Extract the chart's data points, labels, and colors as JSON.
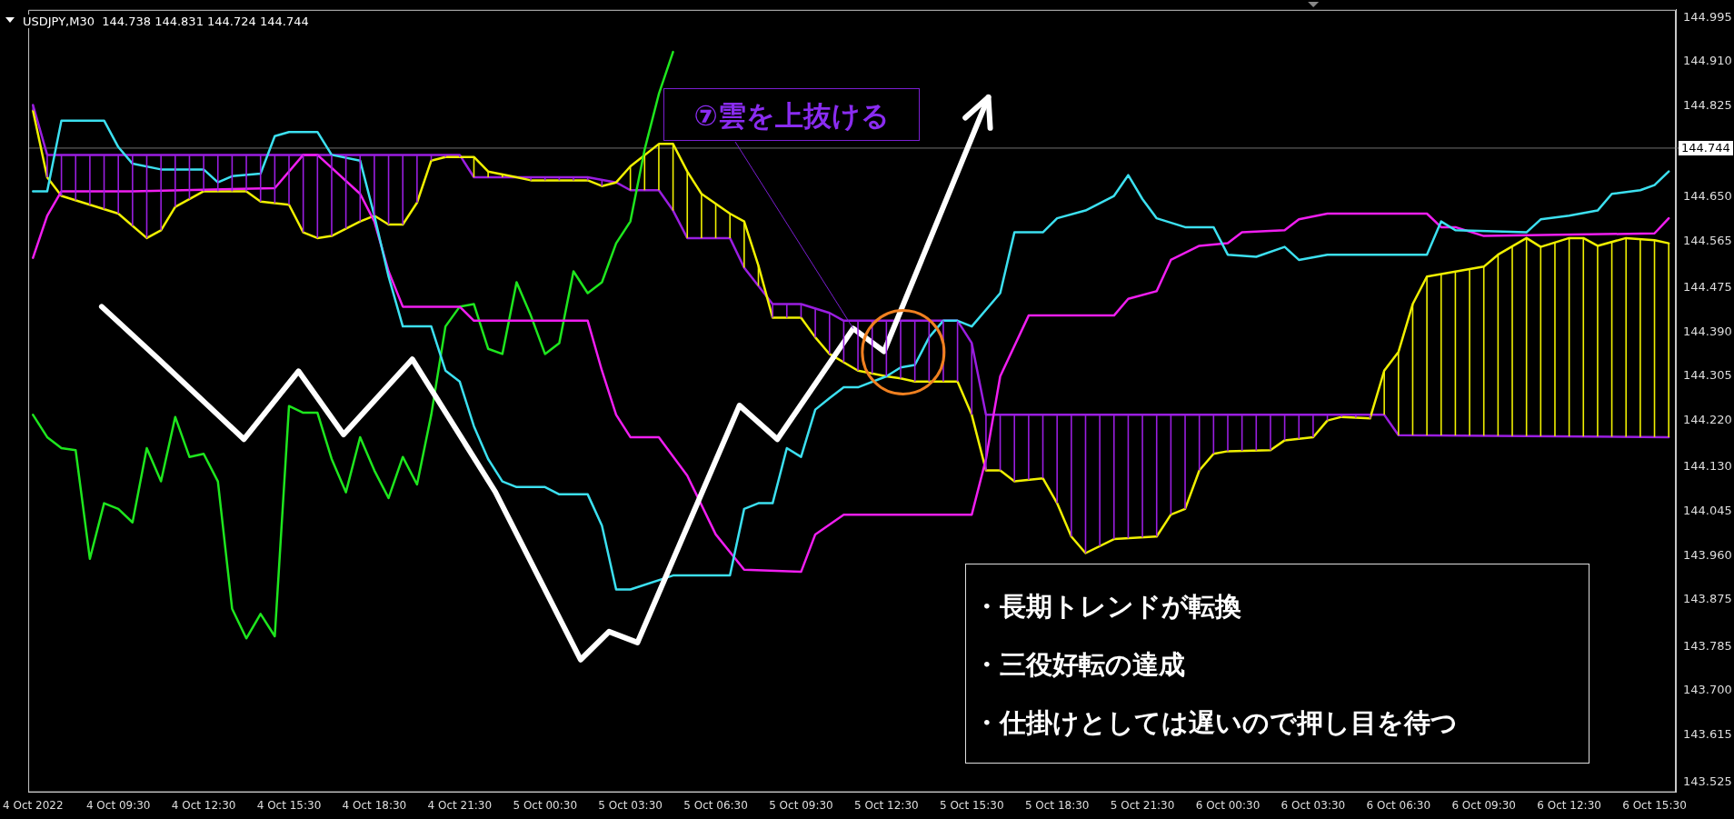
{
  "chart_data": {
    "type": "line",
    "title": "USDJPY,M30  144.738 144.831 144.724 144.744",
    "grid": false,
    "legend": false,
    "marker": "none",
    "xlim": [
      "2022-10-04T06:20",
      "2022-10-06T16:15"
    ],
    "xticks": [
      {
        "value": "2022-10-04T06:30",
        "label": "4 Oct 2022"
      },
      {
        "value": "2022-10-04T09:30",
        "label": "4 Oct 09:30"
      },
      {
        "value": "2022-10-04T12:30",
        "label": "4 Oct 12:30"
      },
      {
        "value": "2022-10-04T15:30",
        "label": "4 Oct 15:30"
      },
      {
        "value": "2022-10-04T18:30",
        "label": "4 Oct 18:30"
      },
      {
        "value": "2022-10-04T21:30",
        "label": "4 Oct 21:30"
      },
      {
        "value": "2022-10-05T00:30",
        "label": "5 Oct 00:30"
      },
      {
        "value": "2022-10-05T03:30",
        "label": "5 Oct 03:30"
      },
      {
        "value": "2022-10-05T06:30",
        "label": "5 Oct 06:30"
      },
      {
        "value": "2022-10-05T09:30",
        "label": "5 Oct 09:30"
      },
      {
        "value": "2022-10-05T12:30",
        "label": "5 Oct 12:30"
      },
      {
        "value": "2022-10-05T15:30",
        "label": "5 Oct 15:30"
      },
      {
        "value": "2022-10-05T18:30",
        "label": "5 Oct 18:30"
      },
      {
        "value": "2022-10-05T21:30",
        "label": "5 Oct 21:30"
      },
      {
        "value": "2022-10-06T00:30",
        "label": "6 Oct 00:30"
      },
      {
        "value": "2022-10-06T03:30",
        "label": "6 Oct 03:30"
      },
      {
        "value": "2022-10-06T06:30",
        "label": "6 Oct 06:30"
      },
      {
        "value": "2022-10-06T09:30",
        "label": "6 Oct 09:30"
      },
      {
        "value": "2022-10-06T12:30",
        "label": "6 Oct 12:30"
      },
      {
        "value": "2022-10-06T15:30",
        "label": "6 Oct 15:30"
      }
    ],
    "ylim": [
      143.505,
      145.01
    ],
    "yticks": [
      {
        "value": 143.525,
        "label": "143.525"
      },
      {
        "value": 143.615,
        "label": "143.615"
      },
      {
        "value": 143.7,
        "label": "143.700"
      },
      {
        "value": 143.785,
        "label": "143.785"
      },
      {
        "value": 143.875,
        "label": "143.875"
      },
      {
        "value": 143.96,
        "label": "143.960"
      },
      {
        "value": 144.045,
        "label": "144.045"
      },
      {
        "value": 144.13,
        "label": "144.130"
      },
      {
        "value": 144.22,
        "label": "144.220"
      },
      {
        "value": 144.305,
        "label": "144.305"
      },
      {
        "value": 144.39,
        "label": "144.390"
      },
      {
        "value": 144.475,
        "label": "144.475"
      },
      {
        "value": 144.565,
        "label": "144.565"
      },
      {
        "value": 144.65,
        "label": "144.650"
      },
      {
        "value": 144.825,
        "label": "144.825"
      },
      {
        "value": 144.91,
        "label": "144.910"
      },
      {
        "value": 144.995,
        "label": "144.995"
      }
    ],
    "ref_lines": [
      {
        "axis": "y",
        "value": 144.744,
        "label": "144.744",
        "color": "#707070"
      }
    ],
    "annotations": [
      {
        "text": "⑦雲を上抜ける",
        "x": "2022-10-05T11:20",
        "y": 144.397
      },
      "・長期トレンドが転換",
      "・三役好転の達成",
      "・仕掛けとしては遅いので押し目を待つ"
    ],
    "series": [
      {
        "color": "#ffffff",
        "x": [
          "2022-10-04T08:55",
          "2022-10-04T10:55",
          "2022-10-04T13:55",
          "2022-10-04T15:50",
          "2022-10-04T17:25",
          "2022-10-04T19:50",
          "2022-10-04T22:45",
          "2022-10-05T01:45",
          "2022-10-05T02:45",
          "2022-10-05T03:45",
          "2022-10-05T07:20",
          "2022-10-05T08:40",
          "2022-10-05T11:20",
          "2022-10-05T12:25",
          "2022-10-05T16:05"
        ],
        "values": [
          144.439,
          144.338,
          144.184,
          144.315,
          144.193,
          144.338,
          144.083,
          143.76,
          143.814,
          143.793,
          144.249,
          144.184,
          144.397,
          144.353,
          144.842
        ]
      },
      {
        "color": "#3ce0f0",
        "x": [
          "2022-10-04T06:30",
          "2022-10-04T07:00",
          "2022-10-04T07:30",
          "2022-10-04T09:00",
          "2022-10-04T09:30",
          "2022-10-04T10:00",
          "2022-10-04T11:00",
          "2022-10-04T12:30",
          "2022-10-04T13:00",
          "2022-10-04T13:30",
          "2022-10-04T14:30",
          "2022-10-04T15:00",
          "2022-10-04T15:30",
          "2022-10-04T16:30",
          "2022-10-04T17:00",
          "2022-10-04T18:00",
          "2022-10-04T18:30",
          "2022-10-04T19:00",
          "2022-10-04T19:30",
          "2022-10-04T20:30",
          "2022-10-04T21:00",
          "2022-10-04T21:30",
          "2022-10-04T22:00",
          "2022-10-04T22:30",
          "2022-10-04T23:00",
          "2022-10-04T23:30",
          "2022-10-05T00:30",
          "2022-10-05T01:00",
          "2022-10-05T02:00",
          "2022-10-05T02:30",
          "2022-10-05T03:00",
          "2022-10-05T03:30",
          "2022-10-05T05:00",
          "2022-10-05T07:00",
          "2022-10-05T07:30",
          "2022-10-05T08:00",
          "2022-10-05T08:30",
          "2022-10-05T09:00",
          "2022-10-05T09:30",
          "2022-10-05T10:00",
          "2022-10-05T10:30",
          "2022-10-05T11:00",
          "2022-10-05T11:30",
          "2022-10-05T12:30",
          "2022-10-05T13:00",
          "2022-10-05T13:30",
          "2022-10-05T14:00",
          "2022-10-05T14:30",
          "2022-10-05T15:00",
          "2022-10-05T15:30",
          "2022-10-05T16:30",
          "2022-10-05T17:00",
          "2022-10-05T18:00",
          "2022-10-05T18:30",
          "2022-10-05T19:30",
          "2022-10-05T20:30",
          "2022-10-05T21:00",
          "2022-10-05T21:30",
          "2022-10-05T22:00",
          "2022-10-05T23:00",
          "2022-10-06T00:00",
          "2022-10-06T00:30",
          "2022-10-06T01:30",
          "2022-10-06T02:30",
          "2022-10-06T03:00",
          "2022-10-06T04:00",
          "2022-10-06T07:30",
          "2022-10-06T08:00",
          "2022-10-06T08:30",
          "2022-10-06T11:00",
          "2022-10-06T11:30",
          "2022-10-06T12:30",
          "2022-10-06T13:30",
          "2022-10-06T14:00",
          "2022-10-06T15:00",
          "2022-10-06T15:30",
          "2022-10-06T16:00"
        ],
        "values": [
          144.661,
          144.661,
          144.797,
          144.797,
          144.746,
          144.714,
          144.703,
          144.703,
          144.678,
          144.69,
          144.695,
          144.767,
          144.775,
          144.775,
          144.731,
          144.72,
          144.614,
          144.497,
          144.401,
          144.401,
          144.316,
          144.295,
          144.209,
          144.146,
          144.103,
          144.092,
          144.092,
          144.078,
          144.078,
          144.018,
          143.895,
          143.895,
          143.922,
          143.922,
          144.05,
          144.061,
          144.061,
          144.167,
          144.15,
          144.241,
          144.263,
          144.284,
          144.284,
          144.305,
          144.322,
          144.327,
          144.38,
          144.412,
          144.412,
          144.401,
          144.465,
          144.582,
          144.582,
          144.609,
          144.624,
          144.652,
          144.692,
          144.646,
          144.609,
          144.592,
          144.592,
          144.539,
          144.535,
          144.554,
          144.529,
          144.539,
          144.539,
          144.603,
          144.586,
          144.582,
          144.607,
          144.614,
          144.624,
          144.656,
          144.663,
          144.673,
          144.699
        ]
      },
      {
        "color": "#f01ef0",
        "x": [
          "2022-10-04T06:30",
          "2022-10-04T07:00",
          "2022-10-04T07:30",
          "2022-10-04T10:00",
          "2022-10-04T15:00",
          "2022-10-04T16:00",
          "2022-10-04T16:30",
          "2022-10-04T18:00",
          "2022-10-04T18:30",
          "2022-10-04T19:00",
          "2022-10-04T19:30",
          "2022-10-04T21:30",
          "2022-10-04T22:00",
          "2022-10-05T02:00",
          "2022-10-05T02:30",
          "2022-10-05T03:00",
          "2022-10-05T03:30",
          "2022-10-05T04:30",
          "2022-10-05T05:30",
          "2022-10-05T06:30",
          "2022-10-05T07:30",
          "2022-10-05T09:30",
          "2022-10-05T10:00",
          "2022-10-05T11:00",
          "2022-10-05T15:30",
          "2022-10-05T16:00",
          "2022-10-05T16:30",
          "2022-10-05T17:30",
          "2022-10-05T20:30",
          "2022-10-05T21:00",
          "2022-10-05T22:00",
          "2022-10-05T22:30",
          "2022-10-05T23:30",
          "2022-10-06T00:30",
          "2022-10-06T01:00",
          "2022-10-06T02:30",
          "2022-10-06T03:00",
          "2022-10-06T04:00",
          "2022-10-06T07:30",
          "2022-10-06T08:00",
          "2022-10-06T08:30",
          "2022-10-06T09:30",
          "2022-10-06T15:30",
          "2022-10-06T16:00"
        ],
        "values": [
          144.533,
          144.614,
          144.661,
          144.661,
          144.667,
          144.731,
          144.731,
          144.656,
          144.603,
          144.507,
          144.439,
          144.439,
          144.412,
          144.412,
          144.316,
          144.231,
          144.188,
          144.188,
          144.114,
          144.001,
          143.933,
          143.929,
          144.001,
          144.039,
          144.039,
          144.146,
          144.305,
          144.422,
          144.422,
          144.454,
          144.469,
          144.529,
          144.556,
          144.561,
          144.582,
          144.586,
          144.607,
          144.618,
          144.618,
          144.592,
          144.592,
          144.575,
          144.58,
          144.609
        ]
      },
      {
        "color": "#1ee61e",
        "x": [
          "2022-10-04T06:30",
          "2022-10-04T07:00",
          "2022-10-04T07:30",
          "2022-10-04T08:00",
          "2022-10-04T08:30",
          "2022-10-04T09:00",
          "2022-10-04T09:30",
          "2022-10-04T10:00",
          "2022-10-04T10:30",
          "2022-10-04T11:00",
          "2022-10-04T11:30",
          "2022-10-04T12:00",
          "2022-10-04T12:30",
          "2022-10-04T13:00",
          "2022-10-04T13:30",
          "2022-10-04T14:00",
          "2022-10-04T14:30",
          "2022-10-04T15:00",
          "2022-10-04T15:30",
          "2022-10-04T16:00",
          "2022-10-04T16:30",
          "2022-10-04T17:00",
          "2022-10-04T17:30",
          "2022-10-04T18:00",
          "2022-10-04T18:30",
          "2022-10-04T19:00",
          "2022-10-04T19:30",
          "2022-10-04T20:00",
          "2022-10-04T20:30",
          "2022-10-04T21:00",
          "2022-10-04T21:30",
          "2022-10-04T22:00",
          "2022-10-04T22:30",
          "2022-10-04T23:00",
          "2022-10-04T23:30",
          "2022-10-05T00:00",
          "2022-10-05T00:30",
          "2022-10-05T01:00",
          "2022-10-05T01:30",
          "2022-10-05T02:00",
          "2022-10-05T02:30",
          "2022-10-05T03:00",
          "2022-10-05T03:30",
          "2022-10-05T04:00",
          "2022-10-05T04:30",
          "2022-10-05T05:00"
        ],
        "values": [
          144.231,
          144.188,
          144.167,
          144.163,
          143.954,
          144.061,
          144.05,
          144.024,
          144.167,
          144.103,
          144.227,
          144.15,
          144.156,
          144.103,
          143.858,
          143.801,
          143.848,
          143.805,
          144.248,
          144.235,
          144.235,
          144.146,
          144.082,
          144.188,
          144.124,
          144.071,
          144.15,
          144.097,
          144.231,
          144.401,
          144.439,
          144.444,
          144.358,
          144.348,
          144.486,
          144.422,
          144.348,
          144.369,
          144.507,
          144.465,
          144.486,
          144.561,
          144.603,
          144.741,
          144.848,
          144.929
        ]
      },
      {
        "color": "#f0f000",
        "x": [
          "2022-10-04T06:30",
          "2022-10-04T07:00",
          "2022-10-04T07:30",
          "2022-10-04T08:30",
          "2022-10-04T09:30",
          "2022-10-04T10:30",
          "2022-10-04T11:00",
          "2022-10-04T11:30",
          "2022-10-04T12:30",
          "2022-10-04T14:00",
          "2022-10-04T14:30",
          "2022-10-04T15:30",
          "2022-10-04T16:00",
          "2022-10-04T16:30",
          "2022-10-04T17:00",
          "2022-10-04T18:00",
          "2022-10-04T18:30",
          "2022-10-04T19:00",
          "2022-10-04T19:30",
          "2022-10-04T20:00",
          "2022-10-04T20:30",
          "2022-10-04T21:00",
          "2022-10-04T22:00",
          "2022-10-04T22:30",
          "2022-10-04T23:30",
          "2022-10-05T00:00",
          "2022-10-05T02:00",
          "2022-10-05T02:30",
          "2022-10-05T03:00",
          "2022-10-05T03:30",
          "2022-10-05T04:30",
          "2022-10-05T05:00",
          "2022-10-05T05:30",
          "2022-10-05T06:00",
          "2022-10-05T07:00",
          "2022-10-05T07:30",
          "2022-10-05T08:00",
          "2022-10-05T08:30",
          "2022-10-05T09:30",
          "2022-10-05T10:00",
          "2022-10-05T10:30",
          "2022-10-05T11:30",
          "2022-10-05T12:30",
          "2022-10-05T13:00",
          "2022-10-05T13:30",
          "2022-10-05T15:00",
          "2022-10-05T15:30",
          "2022-10-05T16:00",
          "2022-10-05T16:30",
          "2022-10-05T17:00",
          "2022-10-05T18:00",
          "2022-10-05T18:30",
          "2022-10-05T19:00",
          "2022-10-05T19:30",
          "2022-10-05T20:30",
          "2022-10-05T22:00",
          "2022-10-05T22:30",
          "2022-10-05T23:00",
          "2022-10-05T23:30",
          "2022-10-06T00:00",
          "2022-10-06T00:30",
          "2022-10-06T02:00",
          "2022-10-06T02:30",
          "2022-10-06T03:30",
          "2022-10-06T04:00",
          "2022-10-06T04:30",
          "2022-10-06T05:30",
          "2022-10-06T06:00",
          "2022-10-06T06:30",
          "2022-10-06T07:00",
          "2022-10-06T07:30",
          "2022-10-06T09:30",
          "2022-10-06T10:00",
          "2022-10-06T11:00",
          "2022-10-06T11:30",
          "2022-10-06T12:30",
          "2022-10-06T13:00",
          "2022-10-06T13:30",
          "2022-10-06T14:30",
          "2022-10-06T15:30",
          "2022-10-06T16:00"
        ],
        "values": [
          144.816,
          144.688,
          144.652,
          144.635,
          144.618,
          144.571,
          144.586,
          144.631,
          144.661,
          144.661,
          144.641,
          144.635,
          144.582,
          144.571,
          144.575,
          144.603,
          144.614,
          144.597,
          144.597,
          144.639,
          144.72,
          144.727,
          144.727,
          144.699,
          144.688,
          144.682,
          144.682,
          144.671,
          144.678,
          144.709,
          144.752,
          144.752,
          144.699,
          144.656,
          144.618,
          144.603,
          144.518,
          144.418,
          144.418,
          144.38,
          144.348,
          144.316,
          144.305,
          144.301,
          144.295,
          144.295,
          144.231,
          144.124,
          144.124,
          144.103,
          144.109,
          144.061,
          143.997,
          143.965,
          143.992,
          143.997,
          144.039,
          144.05,
          144.124,
          144.156,
          144.161,
          144.163,
          144.182,
          144.188,
          144.22,
          144.227,
          144.224,
          144.316,
          144.352,
          144.444,
          144.497,
          144.516,
          144.539,
          144.571,
          144.554,
          144.571,
          144.571,
          144.556,
          144.571,
          144.567,
          144.561
        ]
      },
      {
        "color": "#9a1ee0",
        "x": [
          "2022-10-04T06:30",
          "2022-10-04T07:00",
          "2022-10-04T21:30",
          "2022-10-04T22:00",
          "2022-10-05T02:00",
          "2022-10-05T03:00",
          "2022-10-05T03:30",
          "2022-10-05T04:30",
          "2022-10-05T05:00",
          "2022-10-05T05:30",
          "2022-10-05T07:00",
          "2022-10-05T07:30",
          "2022-10-05T08:30",
          "2022-10-05T09:30",
          "2022-10-05T10:30",
          "2022-10-05T11:00",
          "2022-10-05T15:00",
          "2022-10-05T15:30",
          "2022-10-05T16:00",
          "2022-10-06T06:00",
          "2022-10-06T06:30",
          "2022-10-06T16:00"
        ],
        "values": [
          144.827,
          144.731,
          144.731,
          144.688,
          144.688,
          144.678,
          144.663,
          144.663,
          144.624,
          144.571,
          144.571,
          144.514,
          144.444,
          144.444,
          144.427,
          144.412,
          144.412,
          144.369,
          144.231,
          144.231,
          144.192,
          144.188
        ]
      }
    ]
  }
}
